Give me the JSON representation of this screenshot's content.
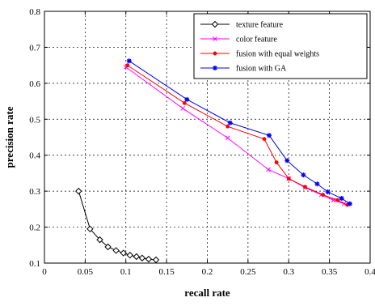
{
  "chart_data": {
    "type": "line",
    "title": "",
    "xlabel": "recall rate",
    "ylabel": "precision rate",
    "xlim": [
      0,
      0.4
    ],
    "ylim": [
      0.1,
      0.8
    ],
    "xticks": [
      "0",
      "0.05",
      "0.1",
      "0.15",
      "0.2",
      "0.25",
      "0.3",
      "0.35",
      "0.4"
    ],
    "yticks": [
      "0.1",
      "0.2",
      "0.3",
      "0.4",
      "0.5",
      "0.6",
      "0.7",
      "0.8"
    ],
    "grid": true,
    "legend_position": "top-right",
    "series": [
      {
        "name": "texture feature",
        "color": "#000000",
        "marker": "diamond-open",
        "x": [
          0.042,
          0.056,
          0.068,
          0.078,
          0.088,
          0.097,
          0.105,
          0.113,
          0.12,
          0.128,
          0.137
        ],
        "y": [
          0.3,
          0.195,
          0.165,
          0.145,
          0.135,
          0.128,
          0.122,
          0.118,
          0.114,
          0.111,
          0.109
        ]
      },
      {
        "name": "color feature",
        "color": "#ff00ff",
        "marker": "x",
        "x": [
          0.1,
          0.17,
          0.225,
          0.275,
          0.3,
          0.32,
          0.34,
          0.355,
          0.368
        ],
        "y": [
          0.645,
          0.53,
          0.448,
          0.36,
          0.335,
          0.31,
          0.29,
          0.275,
          0.265
        ]
      },
      {
        "name": "fusion with equal weights",
        "color": "#ff0000",
        "marker": "dot",
        "x": [
          0.102,
          0.172,
          0.225,
          0.27,
          0.285,
          0.3,
          0.32,
          0.342,
          0.36,
          0.372
        ],
        "y": [
          0.65,
          0.545,
          0.48,
          0.445,
          0.38,
          0.335,
          0.312,
          0.29,
          0.275,
          0.262
        ]
      },
      {
        "name": "fusion with GA",
        "color": "#0000ff",
        "marker": "star",
        "x": [
          0.104,
          0.175,
          0.228,
          0.276,
          0.298,
          0.318,
          0.335,
          0.348,
          0.365,
          0.375
        ],
        "y": [
          0.662,
          0.555,
          0.49,
          0.455,
          0.385,
          0.345,
          0.32,
          0.298,
          0.28,
          0.265
        ]
      }
    ]
  }
}
